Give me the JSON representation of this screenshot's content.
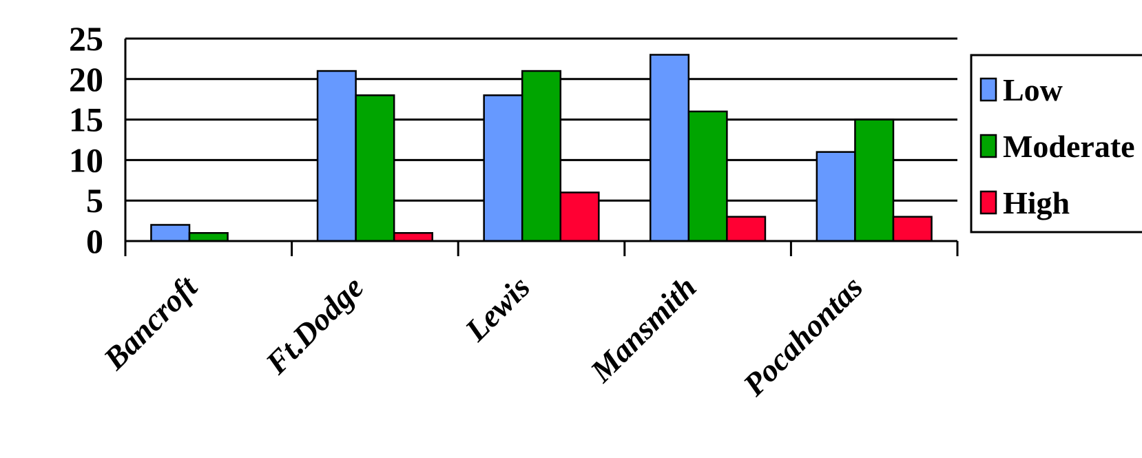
{
  "chart_data": {
    "type": "bar",
    "categories": [
      "Bancroft",
      "Ft.Dodge",
      "Lewis",
      "Mansmith",
      "Pocahontas"
    ],
    "series": [
      {
        "name": "Low",
        "color": "#6699ff",
        "values": [
          2,
          21,
          18,
          23,
          11
        ]
      },
      {
        "name": "Moderate",
        "color": "#00a500",
        "values": [
          1,
          18,
          21,
          16,
          15
        ]
      },
      {
        "name": "High",
        "color": "#ff0033",
        "values": [
          0,
          1,
          6,
          3,
          3
        ]
      }
    ],
    "ylim": [
      0,
      25
    ],
    "yticks": [
      "0",
      "5",
      "10",
      "15",
      "20",
      "25"
    ],
    "grid": true,
    "legend_position": "right",
    "title": "",
    "xlabel": "",
    "ylabel": ""
  }
}
